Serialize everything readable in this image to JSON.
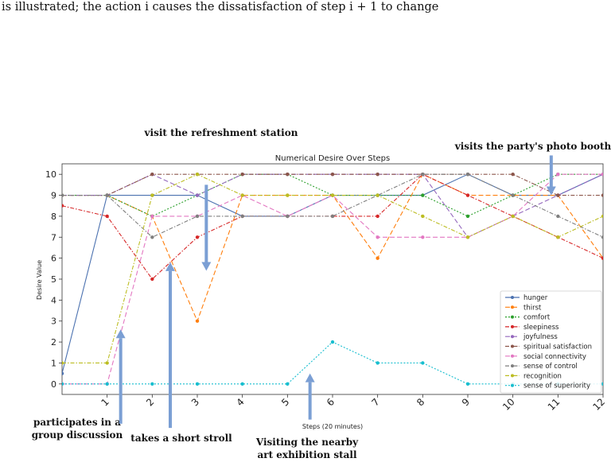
{
  "caption": "is illustrated; the action i causes the dissatisfaction of step i + 1 to change",
  "chart_data": {
    "type": "line",
    "title": "Numerical Desire Over Steps",
    "xlabel": "Steps (20 minutes)",
    "ylabel": "Desire Value",
    "x": [
      0,
      1,
      2,
      3,
      4,
      5,
      6,
      7,
      8,
      9,
      10,
      11,
      12
    ],
    "x_tick_labels": [
      "1",
      "2",
      "3",
      "4",
      "5",
      "6",
      "7",
      "8",
      "9",
      "10",
      "11",
      "12"
    ],
    "ylim": [
      -0.5,
      10.5
    ],
    "y_ticks": [
      0,
      1,
      2,
      3,
      4,
      5,
      6,
      7,
      8,
      9,
      10
    ],
    "legend_position": "lower-right",
    "grid": false,
    "series": [
      {
        "name": "hunger",
        "color": "#4c72b0",
        "dash": "solid",
        "values": [
          0.5,
          9,
          9,
          9,
          8,
          8,
          9,
          9,
          9,
          10,
          9,
          9,
          10
        ]
      },
      {
        "name": "thirst",
        "color": "#ff7f0e",
        "dash": "6,3",
        "values": [
          9,
          9,
          8,
          3,
          9,
          9,
          9,
          6,
          10,
          9,
          9,
          9,
          6
        ]
      },
      {
        "name": "comfort",
        "color": "#2ca02c",
        "dash": "2,2",
        "values": [
          9,
          9,
          8,
          9,
          10,
          10,
          9,
          9,
          9,
          8,
          9,
          10,
          10
        ]
      },
      {
        "name": "sleepiness",
        "color": "#d62728",
        "dash": "5,2,1.5,2",
        "values": [
          8.5,
          8,
          5,
          7,
          8,
          8,
          8,
          8,
          10,
          9,
          8,
          7,
          6
        ]
      },
      {
        "name": "joyfulness",
        "color": "#9467bd",
        "dash": "6,3",
        "values": [
          9,
          9,
          10,
          9,
          10,
          10,
          10,
          10,
          10,
          7,
          8,
          9,
          10
        ]
      },
      {
        "name": "spiritual satisfaction",
        "color": "#8c564b",
        "dash": "5,2,1.5,2",
        "values": [
          9,
          9,
          10,
          10,
          10,
          10,
          10,
          10,
          10,
          10,
          10,
          9,
          9
        ]
      },
      {
        "name": "social connectivity",
        "color": "#e377c2",
        "dash": "6,3",
        "values": [
          0,
          0,
          8,
          8,
          9,
          8,
          9,
          7,
          7,
          7,
          8,
          10,
          10
        ]
      },
      {
        "name": "sense of control",
        "color": "#7f7f7f",
        "dash": "5,2,1.5,2",
        "values": [
          9,
          9,
          7,
          8,
          8,
          8,
          8,
          9,
          10,
          10,
          9,
          8,
          7
        ]
      },
      {
        "name": "recognition",
        "color": "#bcbd22",
        "dash": "5,2,1.5,2",
        "values": [
          1,
          1,
          9,
          10,
          9,
          9,
          9,
          9,
          8,
          7,
          8,
          7,
          8
        ]
      },
      {
        "name": "sense of superiority",
        "color": "#17becf",
        "dash": "2,2",
        "values": [
          0,
          0,
          0,
          0,
          0,
          0,
          2,
          1,
          1,
          0,
          0,
          0,
          0
        ]
      }
    ],
    "annotations": [
      {
        "lines": [
          "visit the refreshment station"
        ],
        "x": 3.2,
        "arrow_from": 9.5,
        "arrow_to": 5.4
      },
      {
        "lines": [
          "visits the party's photo booth"
        ],
        "x": 10.85,
        "arrow_from": 10.9,
        "arrow_to": 9.0
      },
      {
        "lines": [
          "participates in a",
          "group discussion"
        ],
        "x": 1.3,
        "arrow_from": -1.9,
        "arrow_to": 2.6
      },
      {
        "lines": [
          "takes a short stroll"
        ],
        "x": 2.4,
        "arrow_from": -2.1,
        "arrow_to": 5.8
      },
      {
        "lines": [
          "Visiting the nearby",
          "art exhibition stall"
        ],
        "x": 5.5,
        "arrow_from": -1.7,
        "arrow_to": 0.5
      }
    ]
  }
}
